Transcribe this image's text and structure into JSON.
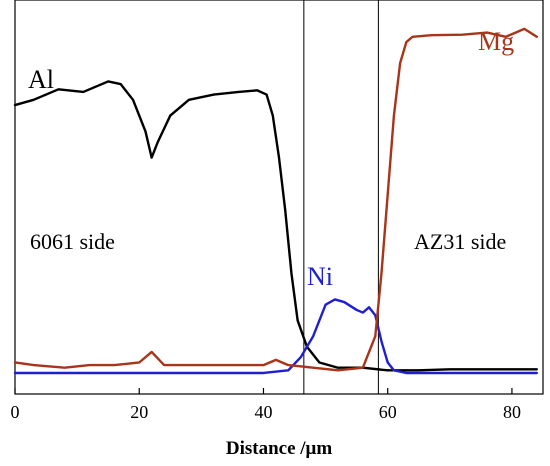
{
  "chart_data": {
    "type": "line",
    "xlabel": "Distance /μm",
    "ylabel": "",
    "xlim": [
      0,
      85
    ],
    "x_ticks": [
      0,
      20,
      40,
      60,
      80
    ],
    "grid": false,
    "reference_lines_x": [
      46.5,
      58.5
    ],
    "annotations": {
      "left_side": "6061 side",
      "right_side": "AZ31 side"
    },
    "series": [
      {
        "name": "Al",
        "color": "#000000",
        "points": [
          [
            0,
            5.0
          ],
          [
            3,
            5.1
          ],
          [
            7,
            5.3
          ],
          [
            11,
            5.25
          ],
          [
            15,
            5.45
          ],
          [
            17,
            5.4
          ],
          [
            19,
            5.1
          ],
          [
            21,
            4.5
          ],
          [
            22,
            4.0
          ],
          [
            23,
            4.3
          ],
          [
            25,
            4.8
          ],
          [
            28,
            5.1
          ],
          [
            32,
            5.2
          ],
          [
            36,
            5.25
          ],
          [
            39,
            5.28
          ],
          [
            40.5,
            5.2
          ],
          [
            41.5,
            4.8
          ],
          [
            42.5,
            4.0
          ],
          [
            43.5,
            3.0
          ],
          [
            44.5,
            1.8
          ],
          [
            45.5,
            0.9
          ],
          [
            47,
            0.4
          ],
          [
            49,
            0.1
          ],
          [
            52,
            0.0
          ],
          [
            56,
            0.0
          ],
          [
            60,
            -0.05
          ],
          [
            65,
            -0.05
          ],
          [
            70,
            -0.03
          ],
          [
            75,
            -0.03
          ],
          [
            80,
            -0.03
          ],
          [
            84,
            -0.03
          ]
        ]
      },
      {
        "name": "Ni",
        "color": "#1f1fd0",
        "points": [
          [
            0,
            -0.1
          ],
          [
            20,
            -0.1
          ],
          [
            40,
            -0.1
          ],
          [
            44,
            -0.05
          ],
          [
            46,
            0.2
          ],
          [
            48,
            0.6
          ],
          [
            50,
            1.2
          ],
          [
            51.5,
            1.3
          ],
          [
            53,
            1.25
          ],
          [
            55,
            1.1
          ],
          [
            56,
            1.05
          ],
          [
            57,
            1.15
          ],
          [
            58,
            1.0
          ],
          [
            59,
            0.5
          ],
          [
            60,
            0.1
          ],
          [
            61,
            -0.05
          ],
          [
            63,
            -0.1
          ],
          [
            70,
            -0.1
          ],
          [
            84,
            -0.1
          ]
        ]
      },
      {
        "name": "Mg",
        "color": "#a8341a",
        "points": [
          [
            0,
            0.1
          ],
          [
            3,
            0.05
          ],
          [
            8,
            0.0
          ],
          [
            12,
            0.05
          ],
          [
            16,
            0.05
          ],
          [
            20,
            0.1
          ],
          [
            22,
            0.3
          ],
          [
            24,
            0.05
          ],
          [
            30,
            0.05
          ],
          [
            35,
            0.05
          ],
          [
            40,
            0.05
          ],
          [
            42,
            0.15
          ],
          [
            44,
            0.05
          ],
          [
            48,
            0.0
          ],
          [
            52,
            -0.05
          ],
          [
            56,
            0.0
          ],
          [
            58,
            0.6
          ],
          [
            59,
            1.8
          ],
          [
            60,
            3.3
          ],
          [
            61,
            4.8
          ],
          [
            62,
            5.8
          ],
          [
            63,
            6.2
          ],
          [
            64,
            6.3
          ],
          [
            67,
            6.33
          ],
          [
            72,
            6.34
          ],
          [
            76,
            6.38
          ],
          [
            79,
            6.3
          ],
          [
            82,
            6.45
          ],
          [
            84,
            6.3
          ]
        ]
      }
    ]
  }
}
